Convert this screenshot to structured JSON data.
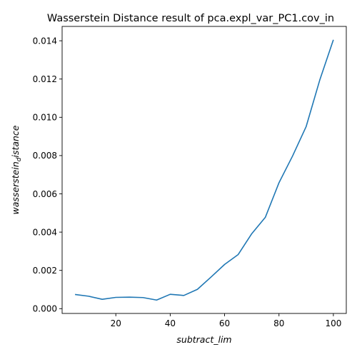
{
  "chart_data": {
    "type": "line",
    "title": "Wasserstein Distance result of pca.expl_var_PC1.cov_in",
    "xlabel": "subtract_lim",
    "ylabel": "wasserstein_distance",
    "ylabel_main": "wasserstein",
    "ylabel_sub": "d",
    "ylabel_rest": "istance",
    "xlim": [
      0.25,
      104.75
    ],
    "ylim": [
      -0.00025,
      0.01475
    ],
    "x_ticks": [
      20,
      40,
      60,
      80,
      100
    ],
    "x_tick_labels": [
      "20",
      "40",
      "60",
      "80",
      "100"
    ],
    "y_ticks": [
      0.0,
      0.002,
      0.004,
      0.006,
      0.008,
      0.01,
      0.012,
      0.014
    ],
    "y_tick_labels": [
      "0.000",
      "0.002",
      "0.004",
      "0.006",
      "0.008",
      "0.010",
      "0.012",
      "0.014"
    ],
    "grid": false,
    "series": [
      {
        "color": "#1f77b4",
        "x": [
          5,
          10,
          15,
          20,
          25,
          30,
          35,
          40,
          45,
          50,
          55,
          60,
          65,
          70,
          75,
          80,
          85,
          90,
          95,
          100
        ],
        "y": [
          0.00074,
          0.00065,
          0.00049,
          0.00059,
          0.0006,
          0.00058,
          0.00045,
          0.00075,
          0.00069,
          0.00101,
          0.00165,
          0.00231,
          0.00283,
          0.00392,
          0.00478,
          0.00658,
          0.00798,
          0.00952,
          0.01195,
          0.01405
        ]
      }
    ]
  }
}
